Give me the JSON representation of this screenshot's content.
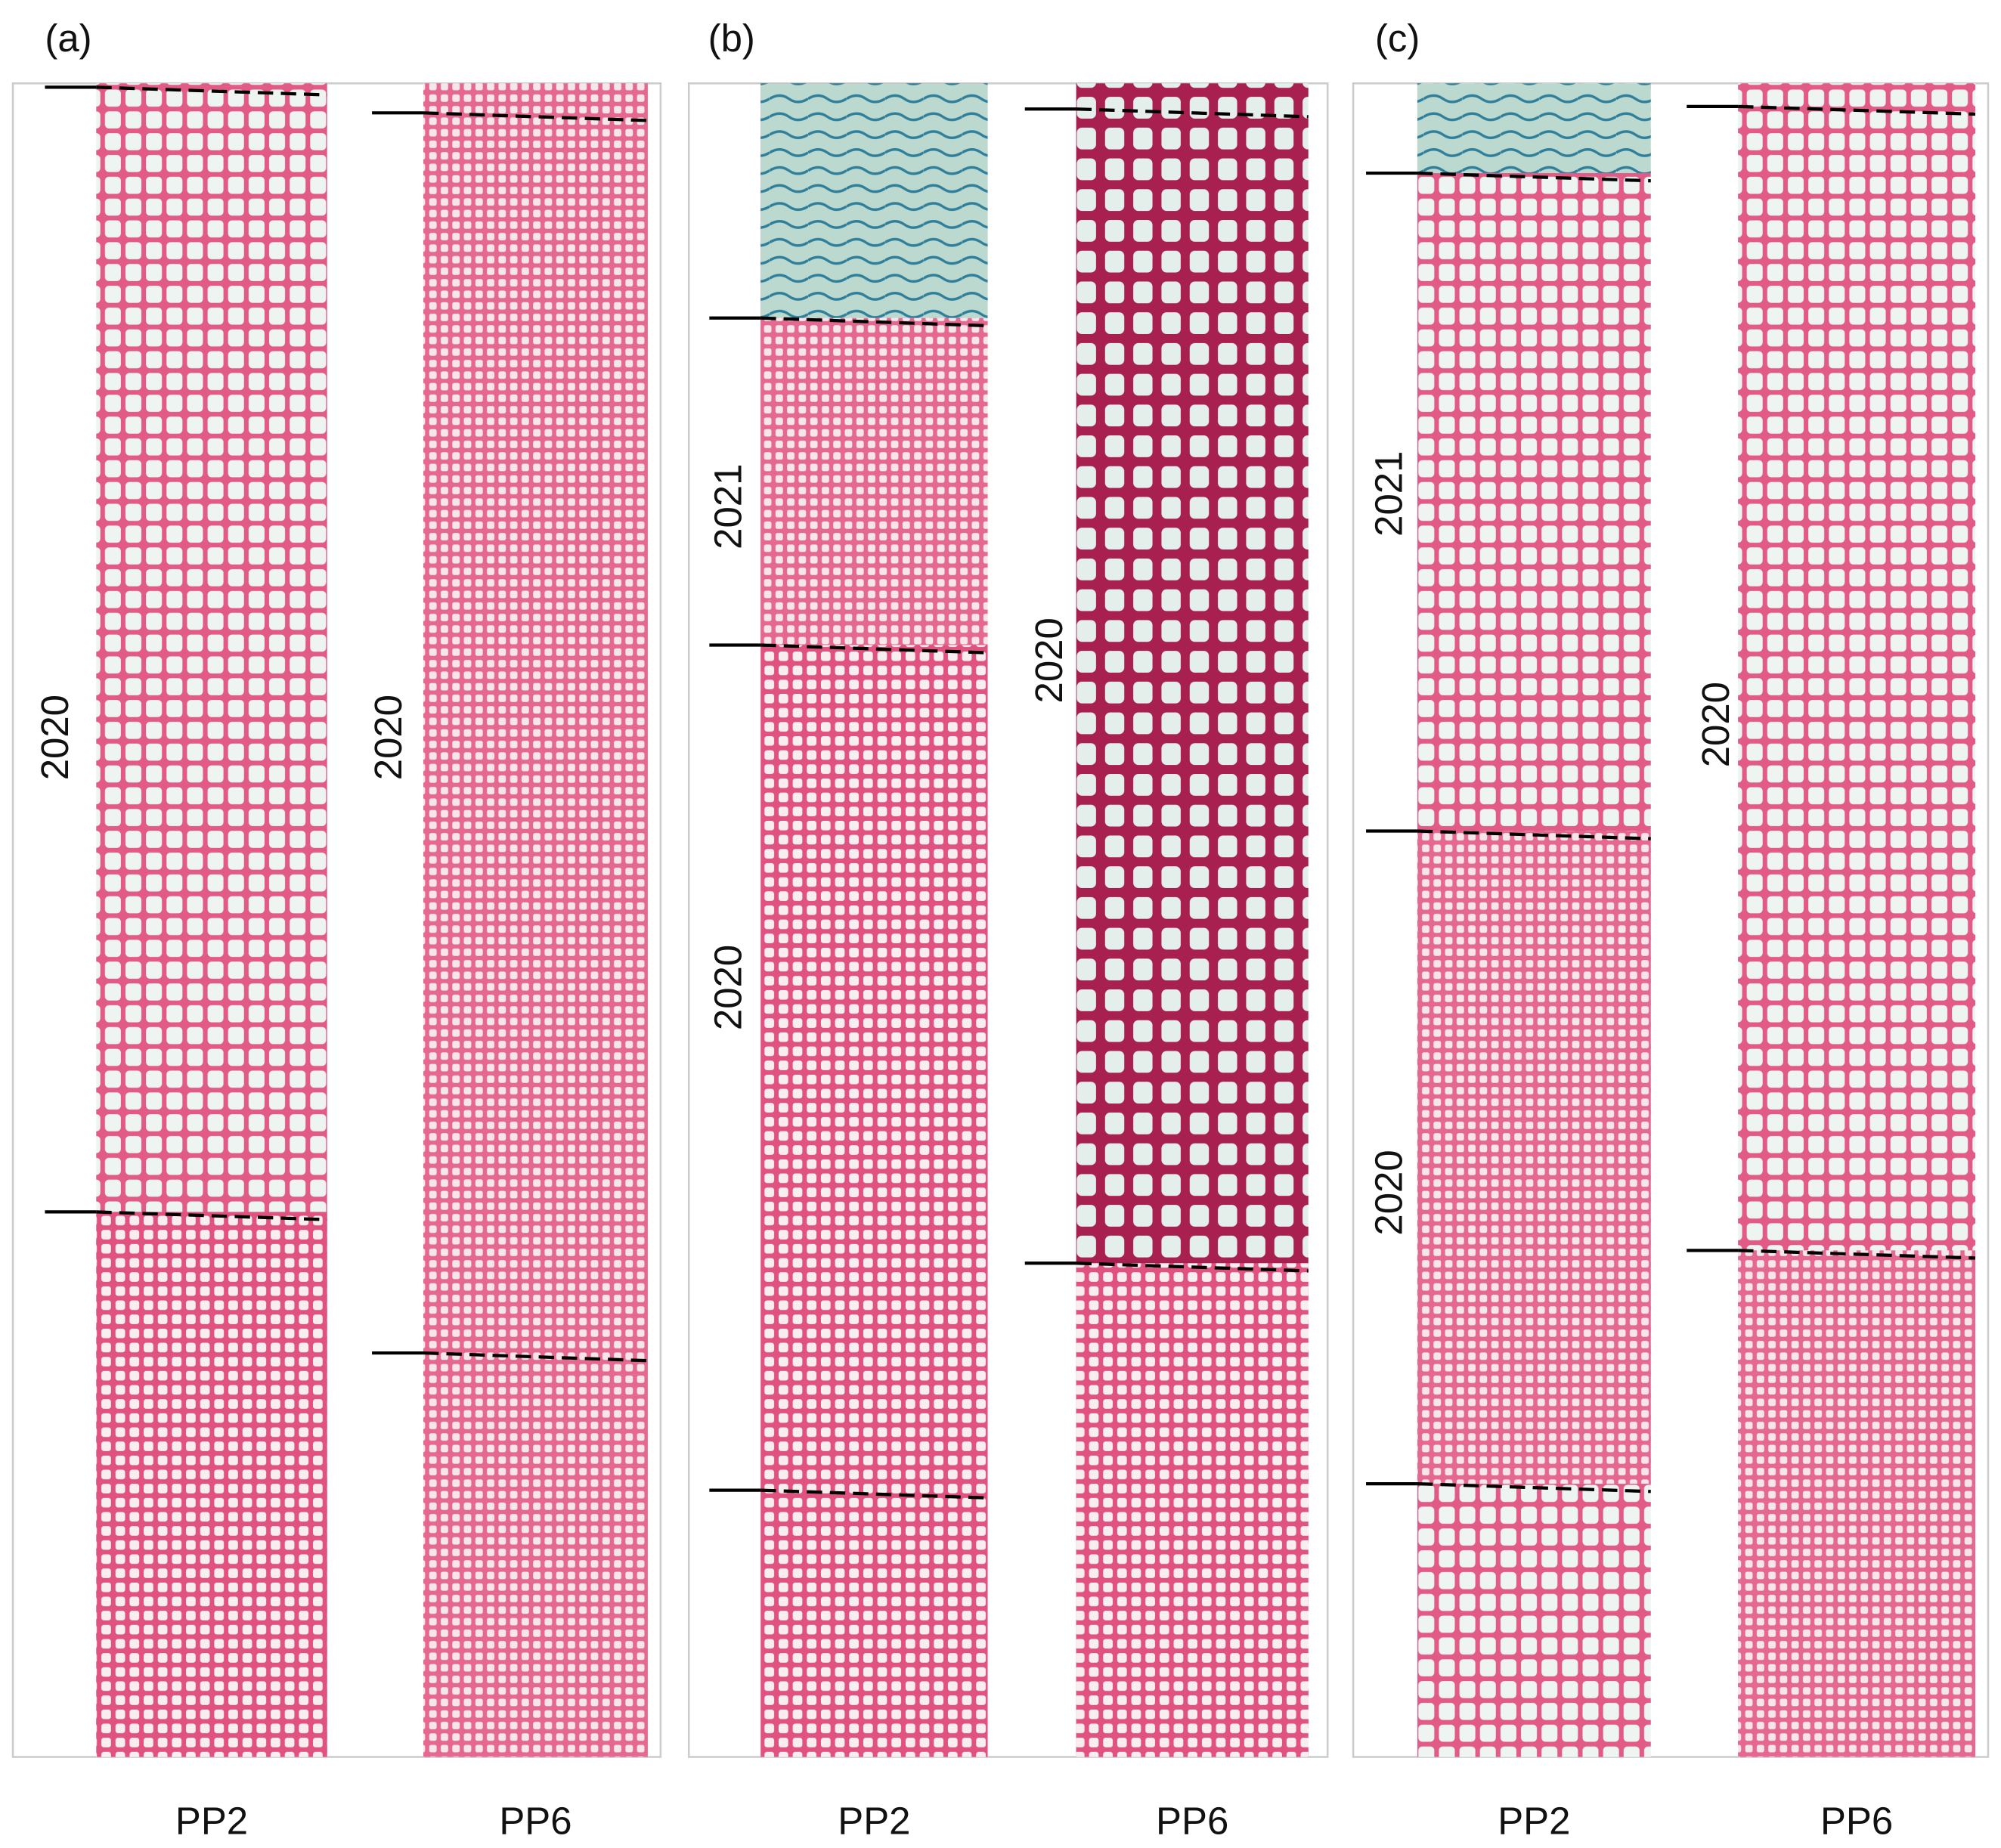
{
  "panels": [
    {
      "label": "(a)",
      "columns": [
        {
          "name": "PP2",
          "years": [
            "2020"
          ]
        },
        {
          "name": "PP6",
          "years": [
            "2020"
          ]
        }
      ]
    },
    {
      "label": "(b)",
      "columns": [
        {
          "name": "PP2",
          "years": [
            "2021",
            "2020"
          ]
        },
        {
          "name": "PP6",
          "years": [
            "2020"
          ]
        }
      ]
    },
    {
      "label": "(c)",
      "columns": [
        {
          "name": "PP2",
          "years": [
            "2021",
            "2020"
          ]
        },
        {
          "name": "PP6",
          "years": [
            "2020"
          ]
        }
      ]
    }
  ]
}
